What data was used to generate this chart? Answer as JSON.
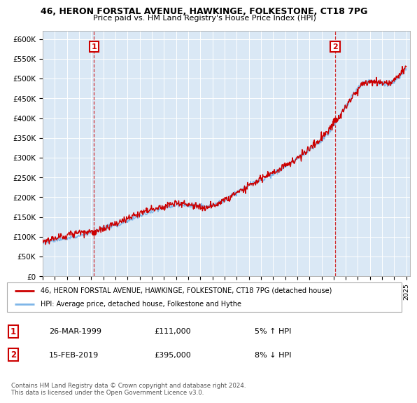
{
  "title_line1": "46, HERON FORSTAL AVENUE, HAWKINGE, FOLKESTONE, CT18 7PG",
  "title_line2": "Price paid vs. HM Land Registry's House Price Index (HPI)",
  "ylabel_ticks": [
    "£0",
    "£50K",
    "£100K",
    "£150K",
    "£200K",
    "£250K",
    "£300K",
    "£350K",
    "£400K",
    "£450K",
    "£500K",
    "£550K",
    "£600K"
  ],
  "ytick_values": [
    0,
    50000,
    100000,
    150000,
    200000,
    250000,
    300000,
    350000,
    400000,
    450000,
    500000,
    550000,
    600000
  ],
  "ylim": [
    0,
    620000
  ],
  "xlim_start": 1995.0,
  "xlim_end": 2025.3,
  "hpi_color": "#7EB6E8",
  "price_paid_color": "#CC0000",
  "chart_bg_color": "#DAE8F5",
  "marker1_year": 1999.23,
  "marker1_value": 111000,
  "marker2_year": 2019.12,
  "marker2_value": 395000,
  "legend_label1": "46, HERON FORSTAL AVENUE, HAWKINGE, FOLKESTONE, CT18 7PG (detached house)",
  "legend_label2": "HPI: Average price, detached house, Folkestone and Hythe",
  "marker1_date": "26-MAR-1999",
  "marker1_price": "£111,000",
  "marker1_hpi": "5% ↑ HPI",
  "marker2_date": "15-FEB-2019",
  "marker2_price": "£395,000",
  "marker2_hpi": "8% ↓ HPI",
  "footnote": "Contains HM Land Registry data © Crown copyright and database right 2024.\nThis data is licensed under the Open Government Licence v3.0.",
  "background_color": "#ffffff",
  "grid_color": "#aaaacc"
}
